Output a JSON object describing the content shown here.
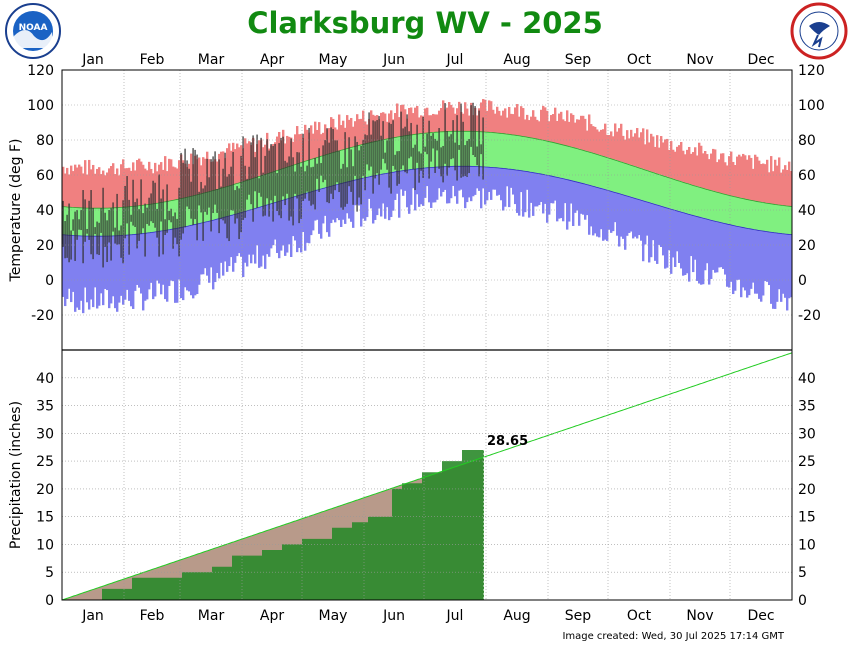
{
  "title": "Clarksburg WV - 2025",
  "footer": "Image created: Wed, 30 Jul 2025 17:14 GMT",
  "logos": {
    "left": "NOAA",
    "right": "NATIONAL WEATHER SERVICE"
  },
  "colors": {
    "record_band": "#f08080",
    "normal_band": "#80f080",
    "record_low_band": "#8080f0",
    "observed": "#303030",
    "precip_normal_fill": "#b89a8a",
    "precip_observed": "#2a8a2a",
    "precip_normal_line": "#22cc22",
    "title": "#118a11"
  },
  "chart_data": [
    {
      "type": "bar",
      "name": "temperature",
      "ylabel": "Temperature (deg F)",
      "ylim": [
        -40,
        120
      ],
      "yticks": [
        -20,
        0,
        20,
        40,
        60,
        80,
        100,
        120
      ],
      "months": [
        "Jan",
        "Feb",
        "Mar",
        "Apr",
        "May",
        "Jun",
        "Jul",
        "Aug",
        "Sep",
        "Oct",
        "Nov",
        "Dec"
      ],
      "month_days": [
        31,
        28,
        31,
        30,
        31,
        30,
        31,
        31,
        30,
        31,
        30,
        31
      ],
      "grid": true,
      "normal_high": {
        "min": 41,
        "max": 85,
        "peak_day": 200
      },
      "normal_low": {
        "min": 25,
        "max": 65,
        "peak_day": 200
      },
      "record_high": {
        "min": 64,
        "max": 99,
        "peak_day": 200
      },
      "record_low": {
        "min": -12,
        "max": 48,
        "peak_day": 200
      },
      "observed_last_day": 211,
      "observed_high_monthly": [
        38,
        45,
        60,
        68,
        72,
        81,
        86
      ],
      "observed_low_monthly": [
        18,
        24,
        33,
        42,
        50,
        60,
        66
      ]
    },
    {
      "type": "area",
      "name": "precipitation",
      "ylabel": "Precipitation (inches)",
      "ylim": [
        0,
        45
      ],
      "yticks": [
        0,
        5,
        10,
        15,
        20,
        25,
        30,
        35,
        40
      ],
      "normal_annual_total": 44.5,
      "observed_ytd": 28.65,
      "observed_ytd_label": "28.65",
      "observed_last_day": 211,
      "observed_cumulative_by_day": [
        [
          0,
          0
        ],
        [
          20,
          2
        ],
        [
          35,
          4
        ],
        [
          60,
          5
        ],
        [
          75,
          6
        ],
        [
          85,
          8
        ],
        [
          100,
          9
        ],
        [
          110,
          10
        ],
        [
          120,
          11
        ],
        [
          135,
          13
        ],
        [
          145,
          14
        ],
        [
          153,
          15
        ],
        [
          165,
          20
        ],
        [
          170,
          21
        ],
        [
          180,
          23
        ],
        [
          190,
          25
        ],
        [
          200,
          27
        ],
        [
          211,
          28.65
        ]
      ],
      "grid": true
    }
  ]
}
